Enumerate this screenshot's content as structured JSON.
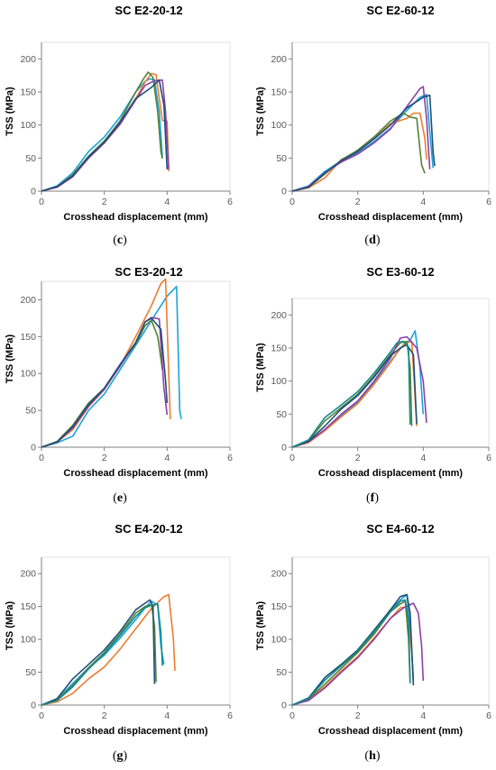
{
  "colors": {
    "blue": "#4472C4",
    "orange": "#ED7D31",
    "green": "#548235",
    "purple": "#8E3FA8",
    "lightblue": "#1BA3D9",
    "navy": "#1F4E79",
    "teal": "#138A8A",
    "axis": "#7F7F7F"
  },
  "chart_data": [
    {
      "type": "line",
      "title": "SC E2-20-12",
      "caption_letter": "c",
      "xlabel": "Crosshead displacement (mm)",
      "ylabel": "TSS (MPa)",
      "xlim": [
        0,
        6
      ],
      "ylim": [
        0,
        225
      ],
      "xticks": [
        0,
        2,
        4,
        6
      ],
      "yticks": [
        0,
        50,
        100,
        150,
        200
      ],
      "grid": false,
      "legend": false,
      "series": [
        {
          "color": "#1BA3D9",
          "x": [
            0,
            0.5,
            1.0,
            1.5,
            2.0,
            2.5,
            3.0,
            3.3,
            3.45,
            3.6,
            3.75,
            3.85
          ],
          "y": [
            0,
            8,
            28,
            60,
            82,
            112,
            150,
            166,
            170,
            168,
            120,
            52
          ]
        },
        {
          "color": "#ED7D31",
          "x": [
            0,
            0.5,
            1.0,
            1.5,
            2.0,
            2.5,
            3.0,
            3.3,
            3.5,
            3.65,
            3.75,
            3.85,
            4.0,
            4.05
          ],
          "y": [
            0,
            6,
            22,
            52,
            75,
            103,
            140,
            165,
            178,
            176,
            140,
            107,
            106,
            30
          ]
        },
        {
          "color": "#548235",
          "x": [
            0,
            0.5,
            1.0,
            1.5,
            2.0,
            2.5,
            3.0,
            3.25,
            3.4,
            3.55,
            3.7,
            3.8,
            3.85
          ],
          "y": [
            0,
            7,
            25,
            53,
            76,
            106,
            150,
            170,
            180,
            172,
            120,
            60,
            49
          ]
        },
        {
          "color": "#8E3FA8",
          "x": [
            0,
            0.5,
            1.0,
            1.5,
            2.0,
            2.5,
            3.0,
            3.3,
            3.6,
            3.85,
            3.95,
            4.05
          ],
          "y": [
            0,
            6,
            22,
            50,
            73,
            101,
            138,
            160,
            167,
            168,
            120,
            33
          ]
        },
        {
          "color": "#1F4E79",
          "x": [
            0,
            0.5,
            1.0,
            1.5,
            2.0,
            2.5,
            3.0,
            3.3,
            3.5,
            3.75,
            3.9,
            4.0
          ],
          "y": [
            0,
            7,
            23,
            52,
            74,
            104,
            140,
            150,
            157,
            168,
            130,
            33
          ]
        }
      ]
    },
    {
      "type": "line",
      "title": "SC E2-60-12",
      "caption_letter": "d",
      "xlabel": "Crosshead displacement (mm)",
      "ylabel": "TSS (MPa)",
      "xlim": [
        0,
        6
      ],
      "ylim": [
        0,
        225
      ],
      "xticks": [
        0,
        2,
        4,
        6
      ],
      "yticks": [
        0,
        50,
        100,
        150,
        200
      ],
      "grid": false,
      "legend": false,
      "series": [
        {
          "color": "#1BA3D9",
          "x": [
            0,
            0.5,
            1.0,
            1.5,
            2.0,
            2.5,
            3.0,
            3.5,
            3.9,
            4.1,
            4.2,
            4.3
          ],
          "y": [
            0,
            8,
            30,
            46,
            58,
            75,
            95,
            122,
            142,
            146,
            90,
            35
          ]
        },
        {
          "color": "#ED7D31",
          "x": [
            0,
            0.5,
            1.0,
            1.5,
            2.0,
            2.5,
            3.0,
            3.5,
            3.7,
            3.9,
            4.05,
            4.1
          ],
          "y": [
            0,
            5,
            20,
            48,
            60,
            80,
            102,
            110,
            118,
            118,
            80,
            48
          ]
        },
        {
          "color": "#548235",
          "x": [
            0,
            0.5,
            1.0,
            1.5,
            2.0,
            2.5,
            3.0,
            3.4,
            3.6,
            3.8,
            3.95,
            4.05
          ],
          "y": [
            0,
            6,
            26,
            47,
            62,
            82,
            106,
            118,
            112,
            110,
            40,
            27
          ]
        },
        {
          "color": "#8E3FA8",
          "x": [
            0,
            0.5,
            1.0,
            1.5,
            2.0,
            2.5,
            3.0,
            3.5,
            3.9,
            4.0,
            4.1,
            4.2
          ],
          "y": [
            0,
            7,
            28,
            44,
            56,
            73,
            94,
            128,
            155,
            158,
            110,
            33
          ]
        },
        {
          "color": "#1F4E79",
          "x": [
            0,
            0.5,
            1.0,
            1.5,
            2.0,
            2.5,
            3.0,
            3.5,
            4.0,
            4.2,
            4.3,
            4.35
          ],
          "y": [
            0,
            6,
            27,
            46,
            60,
            79,
            100,
            126,
            142,
            145,
            60,
            38
          ]
        }
      ]
    },
    {
      "type": "line",
      "title": "SC E3-20-12",
      "caption_letter": "e",
      "xlabel": "Crosshead displacement (mm)",
      "ylabel": "TSS (MPa)",
      "xlim": [
        0,
        6
      ],
      "ylim": [
        0,
        225
      ],
      "xticks": [
        0,
        2,
        4,
        6
      ],
      "yticks": [
        0,
        50,
        100,
        150,
        200
      ],
      "grid": false,
      "legend": false,
      "series": [
        {
          "color": "#1BA3D9",
          "x": [
            0,
            0.5,
            1.0,
            1.5,
            2.0,
            2.5,
            3.0,
            3.5,
            4.0,
            4.3,
            4.4,
            4.45
          ],
          "y": [
            0,
            6,
            15,
            50,
            72,
            105,
            138,
            172,
            205,
            218,
            50,
            38
          ]
        },
        {
          "color": "#ED7D31",
          "x": [
            0,
            0.5,
            1.0,
            1.5,
            2.0,
            2.5,
            3.0,
            3.5,
            3.8,
            3.95,
            4.05,
            4.1
          ],
          "y": [
            0,
            7,
            24,
            55,
            78,
            110,
            150,
            192,
            222,
            228,
            100,
            38
          ]
        },
        {
          "color": "#548235",
          "x": [
            0,
            0.5,
            1.0,
            1.5,
            2.0,
            2.5,
            3.0,
            3.3,
            3.5,
            3.7,
            3.8,
            3.85
          ],
          "y": [
            0,
            8,
            30,
            60,
            80,
            112,
            140,
            165,
            172,
            150,
            120,
            105
          ]
        },
        {
          "color": "#8E3FA8",
          "x": [
            0,
            0.5,
            1.0,
            1.5,
            2.0,
            2.5,
            3.0,
            3.3,
            3.5,
            3.75,
            3.9,
            4.0
          ],
          "y": [
            0,
            7,
            26,
            56,
            79,
            110,
            142,
            170,
            176,
            174,
            80,
            44
          ]
        },
        {
          "color": "#1F4E79",
          "x": [
            0,
            0.5,
            1.0,
            1.5,
            2.0,
            2.5,
            3.0,
            3.3,
            3.5,
            3.8,
            3.95,
            4.0
          ],
          "y": [
            0,
            7,
            28,
            58,
            80,
            112,
            142,
            170,
            175,
            160,
            90,
            60
          ]
        }
      ]
    },
    {
      "type": "line",
      "title": "SC E3-60-12",
      "caption_letter": "f",
      "xlabel": "Crosshead displacement (mm)",
      "ylabel": "TSS (MPa)",
      "xlim": [
        0,
        6
      ],
      "ylim": [
        0,
        225
      ],
      "xticks": [
        0,
        2,
        4,
        6
      ],
      "yticks": [
        0,
        50,
        100,
        150,
        200
      ],
      "grid": false,
      "legend": false,
      "series": [
        {
          "color": "#1BA3D9",
          "x": [
            0,
            0.5,
            1.0,
            1.5,
            2.0,
            2.5,
            3.0,
            3.4,
            3.6,
            3.75,
            3.9,
            4.0
          ],
          "y": [
            0,
            8,
            26,
            48,
            68,
            98,
            130,
            155,
            162,
            176,
            120,
            50
          ]
        },
        {
          "color": "#ED7D31",
          "x": [
            0,
            0.5,
            1.0,
            1.5,
            2.0,
            2.5,
            3.0,
            3.3,
            3.5,
            3.65,
            3.7,
            3.8
          ],
          "y": [
            0,
            7,
            25,
            46,
            66,
            95,
            128,
            150,
            158,
            160,
            120,
            32
          ]
        },
        {
          "color": "#548235",
          "x": [
            0,
            0.5,
            1.0,
            1.5,
            2.0,
            2.5,
            3.0,
            3.3,
            3.5,
            3.6,
            3.65
          ],
          "y": [
            0,
            10,
            40,
            60,
            80,
            108,
            140,
            158,
            160,
            120,
            32
          ]
        },
        {
          "color": "#8E3FA8",
          "x": [
            0,
            0.5,
            1.0,
            1.5,
            2.0,
            2.5,
            3.0,
            3.3,
            3.5,
            3.8,
            4.0,
            4.1
          ],
          "y": [
            0,
            8,
            27,
            50,
            70,
            100,
            135,
            165,
            167,
            150,
            100,
            37
          ]
        },
        {
          "color": "#1F4E79",
          "x": [
            0,
            0.5,
            1.0,
            1.5,
            2.0,
            2.5,
            3.0,
            3.3,
            3.5,
            3.7,
            3.8
          ],
          "y": [
            0,
            9,
            32,
            58,
            78,
            106,
            138,
            150,
            155,
            140,
            35
          ]
        },
        {
          "color": "#138A8A",
          "x": [
            0,
            0.5,
            1.0,
            1.5,
            2.0,
            2.5,
            3.0,
            3.2,
            3.4,
            3.55,
            3.6
          ],
          "y": [
            0,
            11,
            45,
            64,
            84,
            112,
            144,
            158,
            160,
            150,
            34
          ]
        }
      ]
    },
    {
      "type": "line",
      "title": "SC E4-20-12",
      "caption_letter": "g",
      "xlabel": "Crosshead displacement (mm)",
      "ylabel": "TSS (MPa)",
      "xlim": [
        0,
        6
      ],
      "ylim": [
        0,
        225
      ],
      "xticks": [
        0,
        2,
        4,
        6
      ],
      "yticks": [
        0,
        50,
        100,
        150,
        200
      ],
      "grid": false,
      "legend": false,
      "series": [
        {
          "color": "#1BA3D9",
          "x": [
            0,
            0.5,
            1.0,
            1.5,
            2.0,
            2.5,
            3.0,
            3.3,
            3.5,
            3.7,
            3.8,
            3.9
          ],
          "y": [
            0,
            9,
            33,
            57,
            76,
            102,
            130,
            148,
            158,
            152,
            90,
            62
          ]
        },
        {
          "color": "#ED7D31",
          "x": [
            0,
            0.5,
            1.0,
            1.5,
            2.0,
            2.5,
            3.0,
            3.5,
            3.9,
            4.05,
            4.2,
            4.25
          ],
          "y": [
            0,
            5,
            18,
            40,
            58,
            85,
            116,
            147,
            165,
            168,
            100,
            52
          ]
        },
        {
          "color": "#548235",
          "x": [
            0,
            0.5,
            1.0,
            1.5,
            2.0,
            2.5,
            3.0,
            3.3,
            3.5,
            3.6,
            3.65
          ],
          "y": [
            0,
            8,
            30,
            57,
            80,
            108,
            140,
            150,
            153,
            120,
            35
          ]
        },
        {
          "color": "#1F4E79",
          "x": [
            0,
            0.5,
            1.0,
            1.5,
            2.0,
            2.5,
            3.0,
            3.3,
            3.45,
            3.55,
            3.6
          ],
          "y": [
            0,
            10,
            40,
            62,
            84,
            112,
            145,
            155,
            160,
            150,
            32
          ]
        },
        {
          "color": "#138A8A",
          "x": [
            0,
            0.5,
            1.0,
            1.5,
            2.0,
            2.5,
            3.0,
            3.3,
            3.5,
            3.7,
            3.8,
            3.85
          ],
          "y": [
            0,
            7,
            28,
            55,
            78,
            106,
            135,
            148,
            152,
            154,
            110,
            60
          ]
        }
      ]
    },
    {
      "type": "line",
      "title": "SC E4-60-12",
      "caption_letter": "h",
      "xlabel": "Crosshead displacement (mm)",
      "ylabel": "TSS (MPa)",
      "xlim": [
        0,
        6
      ],
      "ylim": [
        0,
        225
      ],
      "xticks": [
        0,
        2,
        4,
        6
      ],
      "yticks": [
        0,
        50,
        100,
        150,
        200
      ],
      "grid": false,
      "legend": false,
      "series": [
        {
          "color": "#1BA3D9",
          "x": [
            0,
            0.5,
            1.0,
            1.5,
            2.0,
            2.5,
            3.0,
            3.3,
            3.5,
            3.6,
            3.7
          ],
          "y": [
            0,
            10,
            38,
            60,
            82,
            110,
            145,
            160,
            168,
            120,
            40
          ]
        },
        {
          "color": "#ED7D31",
          "x": [
            0,
            0.5,
            1.0,
            1.5,
            2.0,
            2.5,
            3.0,
            3.3,
            3.5,
            3.65,
            3.7
          ],
          "y": [
            0,
            8,
            28,
            52,
            74,
            102,
            132,
            148,
            150,
            80,
            35
          ]
        },
        {
          "color": "#548235",
          "x": [
            0,
            0.5,
            1.0,
            1.5,
            2.0,
            2.5,
            3.0,
            3.3,
            3.45,
            3.55,
            3.6
          ],
          "y": [
            0,
            9,
            32,
            56,
            80,
            108,
            142,
            154,
            158,
            100,
            35
          ]
        },
        {
          "color": "#8E3FA8",
          "x": [
            0,
            0.5,
            1.0,
            1.5,
            2.0,
            2.5,
            3.0,
            3.4,
            3.7,
            3.85,
            3.95,
            4.0
          ],
          "y": [
            0,
            7,
            26,
            50,
            72,
            100,
            132,
            148,
            155,
            140,
            90,
            37
          ]
        },
        {
          "color": "#1F4E79",
          "x": [
            0,
            0.5,
            1.0,
            1.5,
            2.0,
            2.5,
            3.0,
            3.3,
            3.5,
            3.6,
            3.7
          ],
          "y": [
            0,
            11,
            42,
            62,
            84,
            114,
            145,
            165,
            168,
            140,
            30
          ]
        },
        {
          "color": "#138A8A",
          "x": [
            0,
            0.5,
            1.0,
            1.5,
            2.0,
            2.5,
            3.0,
            3.3,
            3.45,
            3.55,
            3.6
          ],
          "y": [
            0,
            10,
            38,
            60,
            82,
            112,
            142,
            158,
            160,
            130,
            33
          ]
        }
      ]
    }
  ]
}
